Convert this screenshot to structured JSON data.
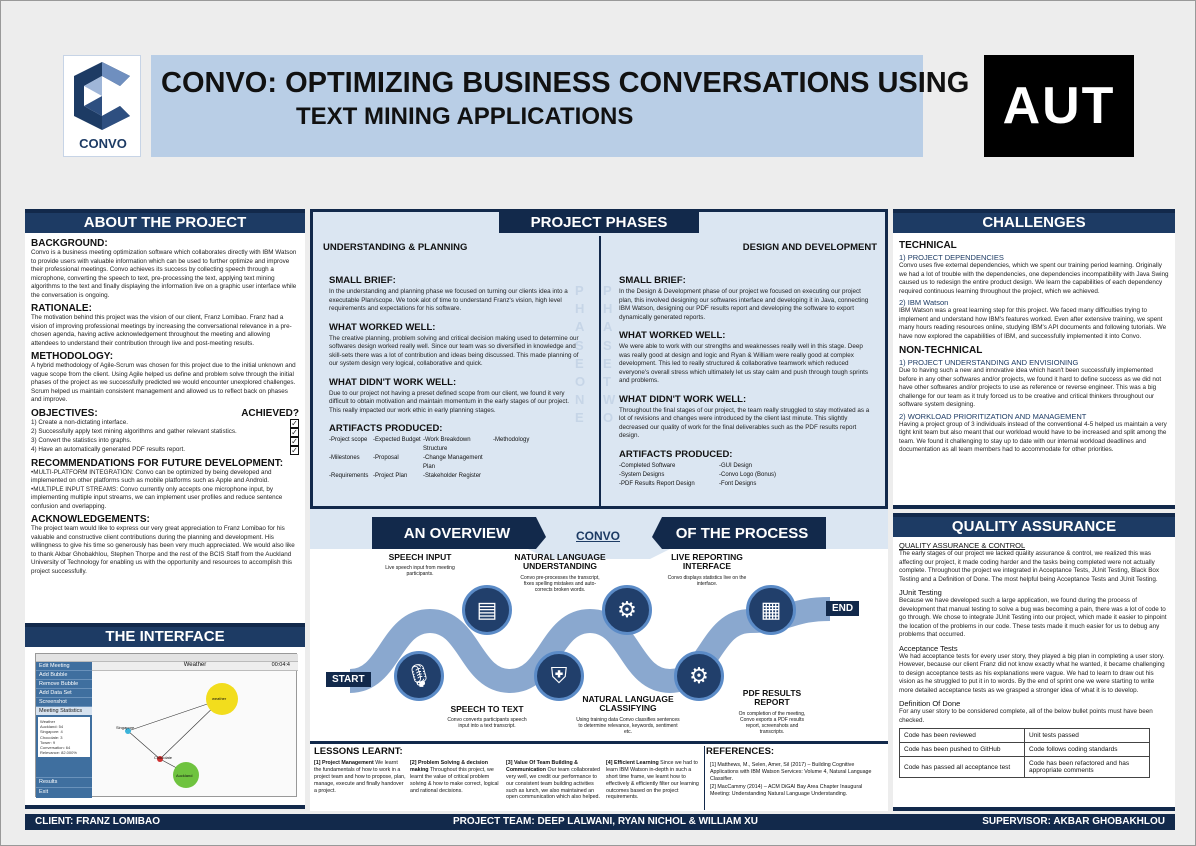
{
  "logo": {
    "text": "CONVO"
  },
  "title": {
    "brand": "CONVO:",
    "line1": "OPTIMIZING BUSINESS CONVERSATIONS USING",
    "line2": "TEXT MINING APPLICATIONS",
    "institution": "AUT"
  },
  "about": {
    "title": "ABOUT THE PROJECT",
    "background_h": "BACKGROUND:",
    "background_t": "Convo is a business meeting optimization software which collaborates directly with IBM Watson to provide users with valuable information which can be used to further optimize and improve their professional meetings. Convo achieves its success by collecting speech through a microphone, converting the speech to text, pre-processing the text, applying text mining algorithms to the text and finally displaying the information live on a graphic user interface while the conversation is ongoing.",
    "rationale_h": "RATIONALE:",
    "rationale_t": "The motivation behind this project was the vision of our client, Franz Lomibao. Franz had a vision of improving professional meetings by increasing the conversational relevance in a pre-chosen agenda, having active acknowledgement throughout the meeting and allowing attendees to understand their contribution through live and post-meeting results.",
    "methodology_h": "METHODOLOGY:",
    "methodology_t": "A hybrid methodology of Agile-Scrum was chosen for this project due to the initial unknown and vague scope from the client. Using Agile helped us define and problem solve through the initial phases of the project as we successfully predicted we would encounter unexplored challenges. Scrum helped us maintain consistent management and allowed us to reflect back on phases and improve.",
    "objectives_h": "OBJECTIVES:",
    "achieved_h": "ACHIEVED?",
    "objectives": [
      "1) Create a non-dictating interface.",
      "2) Successfully apply text mining algorithms and gather relevant statistics.",
      "3) Convert the statistics into graphs.",
      "4) Have an automatically generated PDF results report."
    ],
    "check": "✓",
    "recs_h": "RECOMMENDATIONS FOR FUTURE DEVELOPMENT:",
    "recs_1": "•MULTI-PLATFORM INTEGRATION: Convo can be optimized by being developed and implemented on other platforms such as mobile platforms such as Apple and Android.",
    "recs_2": "•MULTIPLE INPUT STREAMS: Convo currently only accepts one microphone input, by implementing multiple input streams, we can implement user profiles and reduce sentence confusion and overlapping.",
    "ack_h": "ACKNOWLEDGEMENTS:",
    "ack_t": "The project team would like to express our very great appreciation to Franz Lomibao for his valuable and constructive client contributions during the planning and development. His willingness to give his time so generously has been very much appreciated. We would also like to thank Akbar Ghobakhlou, Stephen Thorpe and the rest of the BCIS Staff from the Auckland University of Technology for enabling us with the opportunity and resources to accomplish this project successfully."
  },
  "interface": {
    "title": "THE INTERFACE",
    "app_header": "Weather",
    "timer": "00:04:4",
    "menu": [
      "Edit Meeting",
      "Add Bubble",
      "Remove Bubble",
      "Add Data Set",
      "Screenshot",
      "Meeting Statistics"
    ],
    "menu_bottom": [
      "Results",
      "Exit"
    ],
    "nodes": [
      "weather",
      "Singapore",
      "Chocolate",
      "Auckland"
    ],
    "stats": [
      "Weather",
      "Auckland: 54",
      "Singapore: 4",
      "Chocolate: 3",
      "Tower: 9",
      "Conversation: 64",
      "Relevance: 82.000%"
    ]
  },
  "phases": {
    "title": "PROJECT PHASES",
    "left": {
      "name": "UNDERSTANDING & PLANNING",
      "watermark": "PHASE ONE",
      "brief_h": "SMALL BRIEF:",
      "brief_t": "In the understanding and planning phase we focused on turning our clients idea into a executable Plan/scope. We took alot of time to understand Franz's vision, high level requirements and expectations for his software.",
      "worked_h": "WHAT WORKED WELL:",
      "worked_t": "The creative planning, problem solving and critical decision making used to determine our softwares design worked really well. Since our team was so diversified in knowledge and skill-sets there was a lot of contribution and ideas being discussed. This made planning of our system design very logical, collaborative and quick.",
      "didnt_h": "WHAT DIDN'T WORK WELL:",
      "didnt_t": "Due to our project not having a preset defined scope from our client, we found it very difficult to obtain motivation and maintain momentum in the early stages of our project. This really impacted our work ethic in early planning stages.",
      "art_h": "ARTIFACTS PRODUCED:",
      "artifacts": [
        "-Project scope",
        "-Expected Budget",
        "-Work Breakdown Structure",
        "-Methodology",
        "-Milestones",
        "-Proposal",
        "-Change Management Plan",
        "",
        "-Requirements",
        "-Project Plan",
        "-Stakeholder Register",
        ""
      ]
    },
    "right": {
      "name": "DESIGN AND DEVELOPMENT",
      "watermark": "PHASE TWO",
      "brief_h": "SMALL BRIEF:",
      "brief_t": "In the Design & Development phase of our project we focused on executing our project plan, this involved designing our softwares interface and developing it in Java, connecting IBM Watson, designing our PDF results report and developing the software to export dynamically generated reports.",
      "worked_h": "WHAT WORKED WELL:",
      "worked_t": "We were able to work with our strengths and weaknesses really well in this stage. Deep was really good at design and logic and Ryan & William were really good at complex development. This led to really structured & collaborative teamwork which reduced everyone's overall stress which ultimately let us stay calm and push through tough sprints and problems.",
      "didnt_h": "WHAT DIDN'T WORK WELL:",
      "didnt_t": "Throughout the final stages of our project, the team really struggled to stay motivated as a lot of revisions and changes were introduced by the client last minute. This slightly decreased our quality of work for the final deliverables such as the PDF results report design.",
      "art_h": "ARTIFACTS PRODUCED:",
      "artifacts": [
        "-Completed Software",
        "-GUI Design",
        "-System Designs",
        "-Convo Logo (Bonus)",
        "-PDF Results Report Design",
        "-Font Designs"
      ]
    }
  },
  "overview": {
    "left_title": "AN OVERVIEW",
    "right_title": "OF THE PROCESS",
    "logo": "CONVO",
    "start": "START",
    "end": "END",
    "steps": [
      {
        "label": "SPEECH INPUT",
        "desc": "Live speech input from meeting participants."
      },
      {
        "label": "SPEECH TO TEXT",
        "desc": "Convo converts participants speech input into a text transcript."
      },
      {
        "label": "NATURAL LANGUAGE UNDERSTANDING",
        "desc": "Convo pre-processes the transcript, fixes spelling mistakes and auto-corrects broken words."
      },
      {
        "label": "NATURAL LANGUAGE CLASSIFYING",
        "desc": "Using training data Convo classifies sentences to determine relevance, keywords, sentiment etc."
      },
      {
        "label": "LIVE REPORTING INTERFACE",
        "desc": "Convo displays statistics live on the interface."
      },
      {
        "label": "PDF RESULTS REPORT",
        "desc": "On completion of the meeting, Convo exports a PDF results report, screenshots and transcripts."
      }
    ]
  },
  "lessons": {
    "title": "LESSONS LEARNT:",
    "items": [
      {
        "h": "[1] Project Management",
        "t": "We learnt the fundamentals of how to work in a project team and how to propose, plan, manage, execute and finally handover a project."
      },
      {
        "h": "[2] Problem Solving & decision making",
        "t": "Throughout this project, we learnt the value of critical problem solving & how to make correct, logical and rational decisions."
      },
      {
        "h": "[3] Value Of Team Building & Communication",
        "t": "Our team collaborated very well, we credit our performance to our consistent team building activities such as lunch, we also maintained an open communication which also helped."
      },
      {
        "h": "[4] Efficient Learning",
        "t": "Since we had to learn IBM Watson in-depth in such a short time frame, we learnt how to effectively & efficiently filter our learning outcomes based on the project requirements."
      }
    ]
  },
  "references": {
    "title": "REFERENCES:",
    "items": [
      "[1] Matthews, M., Selen, Amer, Sil (2017) – Building Cognitive Applications with IBM Watson Services: Volume 4, Natural Language Classifier.",
      "[2] MacCammy (2014) – ACM DiGAI Bay Area Chapter Inaugural Meeting: Understanding Natural Language Understanding."
    ]
  },
  "challenges": {
    "title": "CHALLENGES",
    "technical_h": "TECHNICAL",
    "t1_h": "1) PROJECT DEPENDENCIES",
    "t1_t": "Convo uses five external dependencies, which we spent our training period learning. Originally we had a lot of trouble with the dependencies, one dependencies incompatibility with Java Swing caused us to redesign the entire product design. We learn the capabilities of each dependency required continuous learning throughout the project, which we achieved.",
    "t2_h": "2) IBM Watson",
    "t2_t": "IBM Watson was a great learning step for this project. We faced many difficulties trying to implement and understand how IBM's features worked. Even after extensive training, we spent many hours reading resources online, studying IBM's API documents and following tutorials. We have now explored the capabilities of IBM, and successfully implemented it into Convo.",
    "nontech_h": "NON-TECHNICAL",
    "n1_h": "1) PROJECT UNDERSTANDING AND ENVISIONING",
    "n1_t": "Due to having such a new and innovative idea which hasn't been successfully implemented before in any other softwares and/or projects, we found it hard to define success as we did not have other softwares and/or projects to use as reference or reverse engineer. This was a big challenge for our team as it truly forced us to be creative and critical thinkers throughout our software system designing.",
    "n2_h": "2) WORKLOAD PRIORITIZATION AND MANAGEMENT",
    "n2_t": "Having a project group of 3 individuals instead of the conventional 4-5 helped us maintain a very tight knit team but also meant that our workload would have to be increased and split among the team. We found it challenging to stay up to date with our internal workload deadlines and documentation as all team members had to accommodate for other priorities."
  },
  "qa": {
    "title": "QUALITY ASSURANCE",
    "control_h": "QUALITY ASSURANCE & CONTROL",
    "control_t": "The early stages of our project we lacked quality assurance & control, we realized this was affecting our project, it made coding harder and the tasks being completed were not actually complete. Throughout the project we integrated in Acceptance Tests, JUnit Testing, Black Box Testing and a Definition of Done. The most helpful being Acceptance Tests and JUnit Testing.",
    "junit_h": "JUnit Testing",
    "junit_t": "Because we have developed such a large application, we found during the process of development that manual testing to solve a bug was becoming a pain, there was a lot of code to go through. We chose to integrate JUnit Testing into our project, which made it easier to pinpoint the location of the problems in our code. These tests made it much easier for us to debug any problems that occurred.",
    "accept_h": "Acceptance Tests",
    "accept_t": "We had acceptance tests for every user story, they played a big plan in completing a user story. However, because our client Franz did not know exactly what he wanted, it became challenging to design acceptance tests as his explanations were vague. We had to learn to draw out his vision as he struggled to put it in to words. By the end of sprint one we were starting to write more detailed acceptance tests as we grasped a stronger idea of what it is to develop.",
    "dod_h": "Definition Of Done",
    "dod_t": "For any user story to be considered complete, all of the below bullet points must have been checked.",
    "table": [
      [
        "Code has been reviewed",
        "Unit tests passed"
      ],
      [
        "Code has been pushed to GitHub",
        "Code follows coding standards"
      ],
      [
        "Code has passed all acceptance test",
        "Code has been refactored and has appropriate comments"
      ]
    ]
  },
  "footer": {
    "client": "CLIENT: FRANZ LOMIBAO",
    "team": "PROJECT TEAM: DEEP LALWANI, RYAN NICHOL & WILLIAM XU",
    "supervisor": "SUPERVISOR: AKBAR GHOBAKHLOU"
  },
  "colors": {
    "navy": "#12294b",
    "panel_blue": "#dbe6f2",
    "title_blue": "#b9cee6",
    "circle": "#213f6b"
  }
}
